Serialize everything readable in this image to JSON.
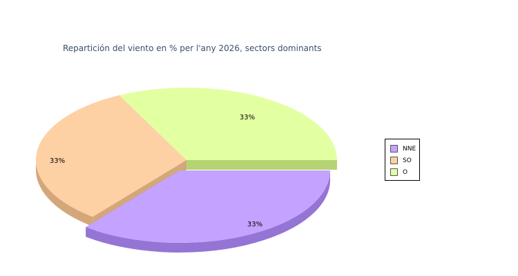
{
  "chart_data": {
    "type": "pie",
    "title": "Repartición del viento en % per l'any 2026, sectors dominants",
    "categories": [
      "NNE",
      "SO",
      "O"
    ],
    "values": [
      33.3,
      33.3,
      33.3
    ],
    "value_labels": [
      "33%",
      "33%",
      "33%"
    ],
    "colors": {
      "NNE": "#c4a2ff",
      "SO": "#fdd1a4",
      "O": "#e2ffa2"
    },
    "side_colors": {
      "NNE": "#9474d4",
      "SO": "#d3a77a",
      "O": "#b6d474"
    },
    "exploded": [
      "NNE",
      "SO"
    ],
    "style": "3d",
    "legend_position": "right"
  }
}
